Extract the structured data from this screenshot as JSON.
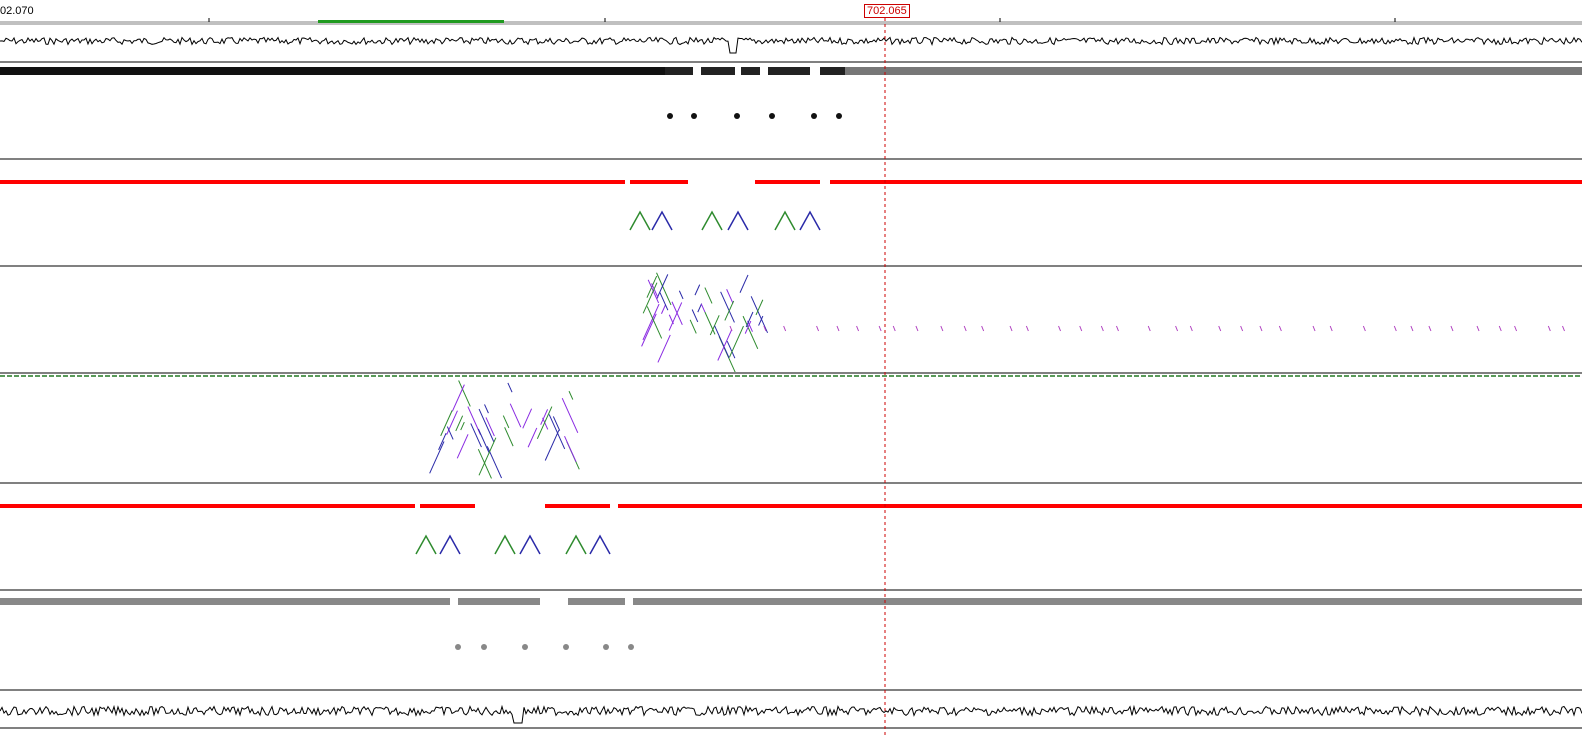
{
  "ruler": {
    "left_coordinate": "02.070",
    "cursor_coordinate": "702.065"
  },
  "colors": {
    "background": "#ffffff",
    "forward_strand": "#ff0000",
    "match_green": "#2e8b2e",
    "match_blue": "#2a2aa8",
    "match_violet": "#8a2be2",
    "cursor_line": "#cc0000",
    "separator": "#808080"
  },
  "tracks": [
    {
      "name": "coverage-plot-top",
      "kind": "graph"
    },
    {
      "name": "sequence-top",
      "kind": "sequence"
    },
    {
      "name": "feature-track-top-1",
      "kind": "features"
    },
    {
      "name": "feature-track-top-2",
      "kind": "features"
    },
    {
      "name": "feature-track-mid",
      "kind": "features"
    },
    {
      "name": "feature-track-bottom-1",
      "kind": "features"
    },
    {
      "name": "sequence-bottom",
      "kind": "sequence"
    },
    {
      "name": "coverage-plot-bottom",
      "kind": "graph"
    }
  ],
  "icons": {
    "cursor": "vertical-dashed-line",
    "selection": "green-selection-bar"
  }
}
